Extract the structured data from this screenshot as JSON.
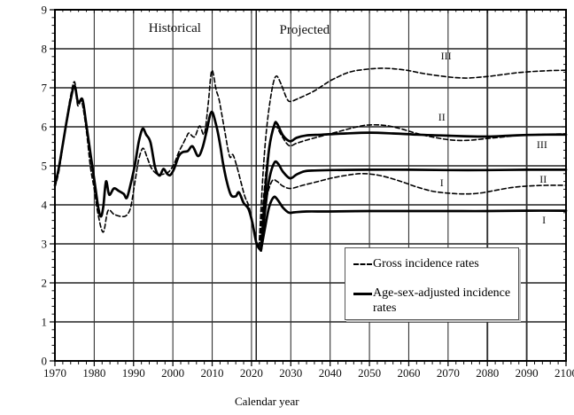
{
  "chart_data": {
    "type": "line",
    "title": "",
    "xlabel": "Calendar year",
    "ylabel": "",
    "xlim": [
      1970,
      2100
    ],
    "ylim": [
      0,
      9
    ],
    "x_ticks": [
      1970,
      1980,
      1990,
      2000,
      2010,
      2020,
      2030,
      2040,
      2050,
      2060,
      2070,
      2080,
      2090,
      2100
    ],
    "y_ticks": [
      0,
      1,
      2,
      3,
      4,
      5,
      6,
      7,
      8,
      9
    ],
    "x_minor_step": 2,
    "y_minor_step": 0.2,
    "grid": true,
    "divider_year": 2021.2,
    "bold_vertical_gridlines": [
      2080,
      2090
    ],
    "annotations": [
      {
        "id": "historical",
        "kind": "section",
        "text": "Historical",
        "x": 2000.5,
        "y": 8.55
      },
      {
        "id": "projected",
        "kind": "section",
        "text": "Projected",
        "x": 2033.5,
        "y": 8.5
      },
      {
        "id": "gross-iii",
        "kind": "curve",
        "text": "III",
        "x": 2069.5,
        "y": 7.82
      },
      {
        "id": "gross-ii",
        "kind": "curve",
        "text": "II",
        "x": 2068.4,
        "y": 6.25
      },
      {
        "id": "gross-i",
        "kind": "curve",
        "text": "I",
        "x": 2068.4,
        "y": 4.57
      },
      {
        "id": "adjusted-iii",
        "kind": "curve",
        "text": "III",
        "x": 2093.9,
        "y": 5.55
      },
      {
        "id": "adjusted-ii",
        "kind": "curve",
        "text": "II",
        "x": 2094.2,
        "y": 4.66
      },
      {
        "id": "adjusted-i",
        "kind": "curve",
        "text": "I",
        "x": 2094.4,
        "y": 3.61
      }
    ],
    "legend": {
      "position": "inside-bottom-right",
      "items": [
        {
          "id": "gross",
          "label": "Gross incidence rates",
          "style": "dashed"
        },
        {
          "id": "adjusted",
          "label": "Age-sex-adjusted incidence rates",
          "style": "solid"
        }
      ]
    },
    "series": [
      {
        "id": "adjusted-historical",
        "group": "Age-sex-adjusted incidence rates",
        "scenario": "historical",
        "style": "solid",
        "points": [
          [
            1970,
            4.5
          ],
          [
            1971,
            4.95
          ],
          [
            1972,
            5.55
          ],
          [
            1973,
            6.15
          ],
          [
            1974,
            6.7
          ],
          [
            1975,
            7.05
          ],
          [
            1975.9,
            6.62
          ],
          [
            1977,
            6.7
          ],
          [
            1978,
            6.05
          ],
          [
            1979,
            5.35
          ],
          [
            1980,
            4.65
          ],
          [
            1981,
            3.95
          ],
          [
            1981.7,
            3.7
          ],
          [
            1982.3,
            3.95
          ],
          [
            1983,
            4.6
          ],
          [
            1983.8,
            4.26
          ],
          [
            1985,
            4.42
          ],
          [
            1986.2,
            4.36
          ],
          [
            1987.5,
            4.28
          ],
          [
            1988.3,
            4.18
          ],
          [
            1989.3,
            4.55
          ],
          [
            1990.3,
            5.0
          ],
          [
            1991.3,
            5.6
          ],
          [
            1992.3,
            5.95
          ],
          [
            1993.2,
            5.8
          ],
          [
            1994.3,
            5.6
          ],
          [
            1995.5,
            4.95
          ],
          [
            1996.6,
            4.75
          ],
          [
            1997.6,
            4.92
          ],
          [
            1998.5,
            4.8
          ],
          [
            1999.3,
            4.76
          ],
          [
            2000.3,
            4.92
          ],
          [
            2001.5,
            5.25
          ],
          [
            2002.5,
            5.35
          ],
          [
            2003.8,
            5.38
          ],
          [
            2005,
            5.5
          ],
          [
            2006.4,
            5.25
          ],
          [
            2007.5,
            5.45
          ],
          [
            2008.5,
            5.85
          ],
          [
            2009.8,
            6.38
          ],
          [
            2011,
            6.05
          ],
          [
            2012,
            5.55
          ],
          [
            2012.7,
            5.1
          ],
          [
            2013.7,
            4.6
          ],
          [
            2014.8,
            4.25
          ],
          [
            2016,
            4.22
          ],
          [
            2016.8,
            4.32
          ],
          [
            2018,
            4.05
          ],
          [
            2019.2,
            3.9
          ],
          [
            2020.2,
            3.55
          ],
          [
            2021.3,
            3.0
          ],
          [
            2022.4,
            2.83
          ]
        ]
      },
      {
        "id": "adjusted-projected-i",
        "group": "Age-sex-adjusted incidence rates",
        "scenario": "I",
        "style": "solid",
        "points": [
          [
            2022.4,
            2.83
          ],
          [
            2023.5,
            3.45
          ],
          [
            2024.5,
            3.95
          ],
          [
            2025.7,
            4.2
          ],
          [
            2026.7,
            4.12
          ],
          [
            2028,
            3.93
          ],
          [
            2029.5,
            3.8
          ],
          [
            2031,
            3.81
          ],
          [
            2034,
            3.83
          ],
          [
            2040,
            3.83
          ],
          [
            2050,
            3.84
          ],
          [
            2060,
            3.84
          ],
          [
            2070,
            3.84
          ],
          [
            2080,
            3.84
          ],
          [
            2090,
            3.85
          ],
          [
            2100,
            3.85
          ]
        ]
      },
      {
        "id": "adjusted-projected-ii",
        "group": "Age-sex-adjusted incidence rates",
        "scenario": "II",
        "style": "solid",
        "points": [
          [
            2022.4,
            2.83
          ],
          [
            2023.5,
            3.9
          ],
          [
            2024.5,
            4.65
          ],
          [
            2025.8,
            5.08
          ],
          [
            2026.8,
            5.05
          ],
          [
            2028,
            4.85
          ],
          [
            2029.8,
            4.68
          ],
          [
            2031.5,
            4.78
          ],
          [
            2033.5,
            4.86
          ],
          [
            2036,
            4.88
          ],
          [
            2040,
            4.89
          ],
          [
            2050,
            4.9
          ],
          [
            2060,
            4.9
          ],
          [
            2070,
            4.89
          ],
          [
            2080,
            4.89
          ],
          [
            2090,
            4.9
          ],
          [
            2100,
            4.9
          ]
        ]
      },
      {
        "id": "adjusted-projected-iii",
        "group": "Age-sex-adjusted incidence rates",
        "scenario": "III",
        "style": "solid",
        "points": [
          [
            2022.4,
            2.83
          ],
          [
            2023.5,
            4.35
          ],
          [
            2024.5,
            5.45
          ],
          [
            2025.8,
            6.05
          ],
          [
            2026.5,
            6.08
          ],
          [
            2028,
            5.78
          ],
          [
            2029.8,
            5.63
          ],
          [
            2031.5,
            5.72
          ],
          [
            2034,
            5.78
          ],
          [
            2038,
            5.8
          ],
          [
            2044,
            5.83
          ],
          [
            2050,
            5.85
          ],
          [
            2056,
            5.83
          ],
          [
            2062,
            5.8
          ],
          [
            2068,
            5.78
          ],
          [
            2074,
            5.76
          ],
          [
            2080,
            5.75
          ],
          [
            2085,
            5.77
          ],
          [
            2090,
            5.79
          ],
          [
            2095,
            5.8
          ],
          [
            2100,
            5.8
          ]
        ]
      },
      {
        "id": "gross-historical",
        "group": "Gross incidence rates",
        "scenario": "historical",
        "style": "dashed",
        "points": [
          [
            1970,
            4.45
          ],
          [
            1971,
            4.85
          ],
          [
            1972,
            5.5
          ],
          [
            1973,
            6.2
          ],
          [
            1974,
            6.8
          ],
          [
            1975,
            7.15
          ],
          [
            1975.8,
            6.55
          ],
          [
            1976.8,
            6.65
          ],
          [
            1978,
            5.9
          ],
          [
            1979,
            5.0
          ],
          [
            1980,
            4.4
          ],
          [
            1981,
            3.75
          ],
          [
            1982.3,
            3.3
          ],
          [
            1983.5,
            3.85
          ],
          [
            1985,
            3.76
          ],
          [
            1987,
            3.7
          ],
          [
            1988.3,
            3.74
          ],
          [
            1989.3,
            3.95
          ],
          [
            1990.3,
            4.55
          ],
          [
            1991.3,
            5.15
          ],
          [
            1992.4,
            5.45
          ],
          [
            1993.5,
            5.2
          ],
          [
            1994.5,
            4.95
          ],
          [
            1995.8,
            4.8
          ],
          [
            1997,
            4.78
          ],
          [
            1998,
            4.8
          ],
          [
            1999,
            4.85
          ],
          [
            2000.3,
            5.05
          ],
          [
            2001.5,
            5.35
          ],
          [
            2002.5,
            5.55
          ],
          [
            2003.5,
            5.75
          ],
          [
            2004.1,
            5.84
          ],
          [
            2005.5,
            5.74
          ],
          [
            2006.8,
            6.02
          ],
          [
            2008,
            5.82
          ],
          [
            2009,
            6.6
          ],
          [
            2009.9,
            7.44
          ],
          [
            2011,
            6.95
          ],
          [
            2011.8,
            6.68
          ],
          [
            2013,
            6.0
          ],
          [
            2014.4,
            5.25
          ],
          [
            2015.3,
            5.28
          ],
          [
            2016.5,
            4.9
          ],
          [
            2018.2,
            4.25
          ],
          [
            2019.2,
            4.0
          ],
          [
            2020.2,
            3.6
          ],
          [
            2021.2,
            3.1
          ],
          [
            2021.9,
            2.92
          ]
        ]
      },
      {
        "id": "gross-projected-i",
        "group": "Gross incidence rates",
        "scenario": "I",
        "style": "dashed",
        "points": [
          [
            2021.9,
            2.92
          ],
          [
            2023,
            3.6
          ],
          [
            2024,
            4.25
          ],
          [
            2025.3,
            4.62
          ],
          [
            2026.5,
            4.6
          ],
          [
            2028,
            4.48
          ],
          [
            2030,
            4.42
          ],
          [
            2033,
            4.5
          ],
          [
            2037,
            4.6
          ],
          [
            2041,
            4.7
          ],
          [
            2045,
            4.77
          ],
          [
            2048,
            4.8
          ],
          [
            2051,
            4.78
          ],
          [
            2054,
            4.72
          ],
          [
            2058,
            4.6
          ],
          [
            2062,
            4.46
          ],
          [
            2066,
            4.35
          ],
          [
            2070,
            4.3
          ],
          [
            2074,
            4.28
          ],
          [
            2078,
            4.3
          ],
          [
            2082,
            4.37
          ],
          [
            2086,
            4.44
          ],
          [
            2090,
            4.48
          ],
          [
            2095,
            4.5
          ],
          [
            2100,
            4.5
          ]
        ]
      },
      {
        "id": "gross-projected-ii",
        "group": "Gross incidence rates",
        "scenario": "II",
        "style": "dashed",
        "points": [
          [
            2021.9,
            2.92
          ],
          [
            2023,
            4.1
          ],
          [
            2024,
            5.15
          ],
          [
            2025.3,
            5.85
          ],
          [
            2026.3,
            6.0
          ],
          [
            2027.5,
            5.8
          ],
          [
            2029.5,
            5.52
          ],
          [
            2031.5,
            5.58
          ],
          [
            2034,
            5.66
          ],
          [
            2037,
            5.74
          ],
          [
            2040,
            5.82
          ],
          [
            2043,
            5.9
          ],
          [
            2046,
            5.98
          ],
          [
            2049,
            6.04
          ],
          [
            2052,
            6.05
          ],
          [
            2055,
            6.02
          ],
          [
            2058,
            5.95
          ],
          [
            2061,
            5.86
          ],
          [
            2064,
            5.78
          ],
          [
            2067,
            5.72
          ],
          [
            2070,
            5.67
          ],
          [
            2073,
            5.65
          ],
          [
            2076,
            5.66
          ],
          [
            2080,
            5.7
          ],
          [
            2084,
            5.74
          ],
          [
            2088,
            5.78
          ],
          [
            2092,
            5.8
          ],
          [
            2096,
            5.81
          ],
          [
            2100,
            5.82
          ]
        ]
      },
      {
        "id": "gross-projected-iii",
        "group": "Gross incidence rates",
        "scenario": "III",
        "style": "dashed",
        "points": [
          [
            2021.9,
            2.92
          ],
          [
            2023,
            4.9
          ],
          [
            2024,
            6.1
          ],
          [
            2025.3,
            7.0
          ],
          [
            2026.3,
            7.3
          ],
          [
            2027.5,
            7.1
          ],
          [
            2029,
            6.72
          ],
          [
            2030,
            6.65
          ],
          [
            2032,
            6.73
          ],
          [
            2034,
            6.82
          ],
          [
            2036,
            6.92
          ],
          [
            2038,
            7.05
          ],
          [
            2040,
            7.18
          ],
          [
            2042,
            7.28
          ],
          [
            2044,
            7.37
          ],
          [
            2046,
            7.43
          ],
          [
            2048,
            7.46
          ],
          [
            2051,
            7.49
          ],
          [
            2054,
            7.5
          ],
          [
            2057,
            7.48
          ],
          [
            2060,
            7.44
          ],
          [
            2063,
            7.38
          ],
          [
            2066,
            7.33
          ],
          [
            2069,
            7.29
          ],
          [
            2072,
            7.26
          ],
          [
            2075,
            7.25
          ],
          [
            2078,
            7.27
          ],
          [
            2081,
            7.3
          ],
          [
            2084,
            7.34
          ],
          [
            2088,
            7.39
          ],
          [
            2092,
            7.42
          ],
          [
            2096,
            7.44
          ],
          [
            2100,
            7.45
          ]
        ]
      }
    ]
  }
}
